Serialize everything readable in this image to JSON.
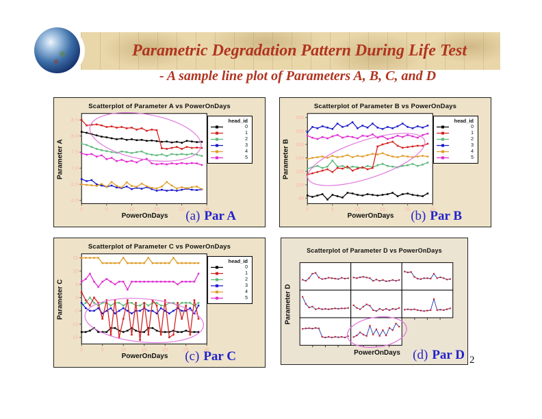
{
  "slide": {
    "title": "Parametric Degradation Pattern During Life Test",
    "subtitle": "- A sample line plot of Parameters A, B, C, and D",
    "page_number": "2"
  },
  "colors": {
    "title_red": "#b0341e",
    "caption_blue": "#2222cc",
    "banner_bg": "#e9d7aa",
    "chart_bg": "#eee3c8",
    "chart_bg_d": "#ece4d2",
    "tick_pink": "#ffb3a6",
    "ellipse_pink": "#e077dc",
    "trellis_line": "#2233aa",
    "trellis_marker": "#cc2020"
  },
  "legend": {
    "title": "head_id",
    "entries": [
      {
        "id": "0",
        "color": "#000000"
      },
      {
        "id": "1",
        "color": "#d42020"
      },
      {
        "id": "2",
        "color": "#5cb87a"
      },
      {
        "id": "3",
        "color": "#1818cc"
      },
      {
        "id": "4",
        "color": "#e09c28"
      },
      {
        "id": "5",
        "color": "#e228d2"
      }
    ]
  },
  "charts": {
    "a": {
      "title": "Scatterplot of Parameter A vs PowerOnDays",
      "ylabel": "Parameter A",
      "xlabel": "PowerOnDays",
      "caption_prefix": "(a)",
      "caption_label": "Par A"
    },
    "b": {
      "title": "Scatterplot of Parameter B vs PowerOnDays",
      "ylabel": "Parameter B",
      "xlabel": "PowerOnDays",
      "caption_prefix": "(b)",
      "caption_label": "Par B"
    },
    "c": {
      "title": "Scatterplot of Parameter C vs PowerOnDays",
      "ylabel": "Parameter C",
      "xlabel": "PowerOnDays",
      "caption_prefix": "(c)",
      "caption_label": "Par C"
    },
    "d": {
      "title": "Scatterplot of Parameter D vs PowerOnDays",
      "ylabel": "Parameter D",
      "xlabel": "PowerOnDays",
      "caption_prefix": "(d)",
      "caption_label": "Par D"
    }
  },
  "chart_data": [
    {
      "id": "a",
      "type": "line",
      "title": "Scatterplot of Parameter A vs PowerOnDays",
      "xlabel": "PowerOnDays",
      "ylabel": "Parameter A",
      "xlim": [
        0,
        25
      ],
      "ylim": [
        5.9,
        8.7
      ],
      "ydec": 1,
      "xticks": [
        0,
        5,
        10,
        15,
        20,
        25
      ],
      "yticks": [
        6.0,
        6.5,
        7.0,
        7.5,
        8.0,
        8.5
      ],
      "legend_position": "right",
      "series": [
        {
          "name": "0",
          "color": "#000000",
          "values": [
            8.13,
            8.1,
            8.06,
            8.02,
            7.98,
            7.96,
            7.93,
            7.9,
            7.92,
            7.88,
            7.9,
            7.87,
            7.88,
            7.85,
            7.86,
            7.84,
            7.82,
            7.83,
            7.8,
            7.82,
            7.79,
            7.85,
            7.83,
            7.81,
            7.82
          ]
        },
        {
          "name": "1",
          "color": "#d42020",
          "values": [
            8.5,
            8.33,
            8.35,
            8.36,
            8.33,
            8.28,
            8.3,
            8.26,
            8.28,
            8.24,
            8.26,
            8.2,
            8.24,
            8.16,
            8.2,
            8.18,
            7.62,
            7.6,
            7.63,
            7.66,
            7.6,
            7.66,
            7.63,
            7.64,
            7.63
          ]
        },
        {
          "name": "2",
          "color": "#5cb87a",
          "values": [
            7.76,
            7.72,
            7.66,
            7.6,
            7.56,
            7.53,
            7.5,
            7.48,
            7.52,
            7.5,
            7.47,
            7.5,
            7.52,
            7.45,
            7.42,
            7.4,
            7.43,
            7.38,
            7.44,
            7.42,
            7.44,
            7.42,
            7.45,
            7.42,
            7.38
          ]
        },
        {
          "name": "5",
          "color": "#e228d2",
          "values": [
            7.46,
            7.42,
            7.44,
            7.36,
            7.4,
            7.28,
            7.32,
            7.22,
            7.26,
            7.2,
            7.23,
            7.18,
            7.26,
            7.29,
            7.15,
            7.12,
            7.14,
            7.12,
            7.15,
            7.13,
            7.16,
            7.14,
            7.16,
            7.15,
            7.1
          ]
        },
        {
          "name": "3",
          "color": "#1818cc",
          "values": [
            6.66,
            6.6,
            6.63,
            6.5,
            6.46,
            6.42,
            6.46,
            6.4,
            6.38,
            6.43,
            6.35,
            6.39,
            6.36,
            6.41,
            6.35,
            6.3,
            6.33,
            6.3,
            6.32,
            6.3,
            6.33,
            6.36,
            6.33,
            6.32,
            6.34
          ]
        },
        {
          "name": "4",
          "color": "#e09c28",
          "values": [
            6.5,
            6.48,
            6.47,
            6.45,
            6.51,
            6.42,
            6.57,
            6.45,
            6.4,
            6.56,
            6.45,
            6.42,
            6.52,
            6.44,
            6.39,
            6.37,
            6.43,
            6.57,
            6.46,
            6.37,
            6.41,
            6.38,
            6.41,
            6.43,
            6.35
          ]
        }
      ],
      "ellipse": {
        "fx": 0.51,
        "fy": 0.26,
        "frx": 0.45,
        "fry": 0.25,
        "rot": 10
      }
    },
    {
      "id": "b",
      "type": "line",
      "title": "Scatterplot of Parameter B vs PowerOnDays",
      "xlabel": "PowerOnDays",
      "ylabel": "Parameter B",
      "xlim": [
        0,
        25
      ],
      "ylim": [
        72,
        206
      ],
      "ydec": 0,
      "xticks": [
        0,
        5,
        10,
        15,
        20,
        25
      ],
      "yticks": [
        80,
        100,
        120,
        140,
        160,
        180,
        200
      ],
      "legend_position": "right",
      "series": [
        {
          "name": "3",
          "color": "#1818cc",
          "values": [
            178,
            186,
            184,
            187,
            185,
            183,
            191,
            186,
            188,
            193,
            184,
            188,
            185,
            191,
            185,
            183,
            186,
            184,
            187,
            191,
            186,
            184,
            187,
            185,
            188
          ]
        },
        {
          "name": "5",
          "color": "#e228d2",
          "values": [
            173,
            170,
            168,
            171,
            169,
            172,
            174,
            170,
            172,
            171,
            169,
            173,
            172,
            175,
            170,
            172,
            168,
            170,
            173,
            171,
            174,
            172,
            170,
            174,
            176
          ]
        },
        {
          "name": "4",
          "color": "#e09c28",
          "values": [
            138,
            140,
            141,
            142,
            140,
            143,
            141,
            142,
            144,
            141,
            143,
            142,
            144,
            146,
            145,
            147,
            144,
            142,
            141,
            143,
            142,
            141,
            142,
            143,
            142
          ]
        },
        {
          "name": "2",
          "color": "#5cb87a",
          "values": [
            124,
            126,
            128,
            125,
            127,
            136,
            127,
            128,
            125,
            127,
            126,
            125,
            128,
            126,
            129,
            131,
            128,
            127,
            126,
            128,
            129,
            131,
            128,
            130,
            133
          ]
        },
        {
          "name": "0",
          "color": "#000000",
          "values": [
            84,
            82,
            84,
            86,
            78,
            85,
            83,
            81,
            88,
            87,
            85,
            84,
            86,
            85,
            84,
            85,
            86,
            88,
            83,
            86,
            87,
            85,
            84,
            83,
            87
          ]
        },
        {
          "name": "1",
          "color": "#d42020",
          "values": [
            115,
            117,
            119,
            121,
            123,
            119,
            125,
            124,
            127,
            121,
            124,
            126,
            123,
            125,
            157,
            160,
            162,
            164,
            158,
            155,
            156,
            157,
            158,
            158,
            161
          ]
        }
      ],
      "ellipse": {
        "fx": 0.47,
        "fy": 0.51,
        "frx": 0.49,
        "fry": 0.21,
        "rot": -18
      }
    },
    {
      "id": "c",
      "type": "line",
      "title": "Scatterplot of Parameter C vs PowerOnDays",
      "xlabel": "PowerOnDays",
      "ylabel": "Parameter C",
      "xlim": [
        0,
        30
      ],
      "ylim": [
        -17.5,
        16.5
      ],
      "ydec": 0,
      "xticks": [
        0,
        5,
        10,
        15,
        20,
        25,
        30
      ],
      "yticks": [
        -15,
        -10,
        -5,
        0,
        5,
        10,
        15
      ],
      "legend_position": "right",
      "series": [
        {
          "name": "4",
          "color": "#e09c28",
          "values": [
            15,
            15,
            15,
            15,
            15,
            13,
            13,
            13,
            13,
            13,
            15,
            13,
            13,
            13,
            13,
            13,
            15,
            13,
            13,
            13,
            13,
            13,
            15,
            13,
            13,
            13,
            13,
            13,
            13
          ]
        },
        {
          "name": "5",
          "color": "#e228d2",
          "values": [
            6,
            7,
            9,
            6,
            4,
            6,
            7,
            6,
            5,
            6,
            6,
            3,
            6,
            6,
            6,
            6,
            6,
            6,
            6,
            6,
            6,
            6,
            6,
            5,
            6,
            6,
            6,
            6,
            9
          ]
        },
        {
          "name": "2",
          "color": "#5cb87a",
          "values": [
            -3,
            -2,
            0,
            -2,
            -3,
            -2,
            -2,
            -3,
            -2,
            -2,
            -3,
            -2,
            -2,
            -3,
            -3,
            -2,
            -3,
            -2,
            -2,
            -3,
            -3,
            -2,
            -2,
            -3,
            -2,
            -2,
            -2,
            -3,
            -2
          ]
        },
        {
          "name": "3",
          "color": "#1818cc",
          "values": [
            -2,
            -4,
            -5,
            -5,
            -4,
            -6,
            -5,
            -4,
            -6,
            -5,
            -4,
            -5,
            -6,
            -5,
            -5,
            -4,
            -5,
            -5,
            -6,
            -4,
            -5,
            -6,
            -5,
            -4,
            -5,
            -5,
            -4,
            -6,
            -3
          ]
        },
        {
          "name": "0",
          "color": "#000000",
          "values": [
            -13,
            -13,
            -12.5,
            -11.5,
            -13,
            -13,
            -13,
            -11.5,
            -11.5,
            -12.5,
            -13,
            -12.5,
            -11.5,
            -12.5,
            -13,
            -13,
            -11.5,
            -11.5,
            -12.5,
            -13,
            -13,
            -13,
            -12.5,
            -13,
            -13,
            -12.5,
            -13,
            -13,
            -13
          ]
        },
        {
          "name": "1",
          "color": "#d42020",
          "values": [
            2,
            -1,
            -3,
            0,
            -2,
            -8,
            -1,
            -14,
            -1,
            -15,
            -8,
            -1,
            -14,
            -2,
            -16,
            -2,
            -14,
            -1,
            -3,
            -14,
            -1,
            -15,
            -14,
            -2,
            -8,
            -3,
            -14,
            -1,
            -8
          ]
        }
      ],
      "ellipse": {
        "fx": 0.5,
        "fy": 0.74,
        "frx": 0.475,
        "fry": 0.24,
        "rot": 5
      }
    },
    {
      "id": "d",
      "type": "trellis-line",
      "title": "Scatterplot of Parameter D vs PowerOnDays",
      "xlabel": "PowerOnDays",
      "ylabel": "Parameter D",
      "rows": 3,
      "cols": 3,
      "panels": [
        {
          "r": 0,
          "c": 0,
          "values": [
            0.35,
            0.3,
            0.42,
            0.62,
            0.66,
            0.45,
            0.38,
            0.4,
            0.44,
            0.42,
            0.4,
            0.38,
            0.44,
            0.4,
            0.42
          ]
        },
        {
          "r": 0,
          "c": 1,
          "values": [
            0.45,
            0.42,
            0.46,
            0.48,
            0.45,
            0.42,
            0.3,
            0.36,
            0.3,
            0.34,
            0.28,
            0.3,
            0.34,
            0.3,
            0.34
          ]
        },
        {
          "r": 0,
          "c": 2,
          "values": [
            0.72,
            0.68,
            0.7,
            0.48,
            0.4,
            0.38,
            0.42,
            0.42,
            0.4,
            0.62,
            0.42,
            0.46,
            0.42,
            0.36,
            0.38
          ]
        },
        {
          "r": 1,
          "c": 0,
          "values": [
            0.82,
            0.5,
            0.34,
            0.38,
            0.26,
            0.3,
            0.26,
            0.28,
            0.26,
            0.28,
            0.3,
            0.28,
            0.3,
            0.3,
            0.32
          ]
        },
        {
          "r": 1,
          "c": 1,
          "values": [
            0.44,
            0.32,
            0.26,
            0.38,
            0.48,
            0.42,
            0.22,
            0.18,
            0.28,
            0.22,
            0.28,
            0.22,
            0.28,
            0.26,
            0.32
          ]
        },
        {
          "r": 1,
          "c": 2,
          "values": [
            0.24,
            0.26,
            0.24,
            0.26,
            0.22,
            0.2,
            0.18,
            0.2,
            0.22,
            0.72,
            0.22,
            0.24,
            0.22,
            0.26,
            0.3
          ]
        },
        {
          "r": 2,
          "c": 0,
          "values": [
            0.62,
            0.64,
            0.65,
            0.63,
            0.66,
            0.64,
            0.26,
            0.23,
            0.26,
            0.23,
            0.26,
            0.24,
            0.26,
            0.23,
            0.29
          ]
        },
        {
          "r": 2,
          "c": 1,
          "values": [
            0.25,
            0.32,
            0.46,
            0.36,
            0.3,
            0.76,
            0.36,
            0.6,
            0.3,
            0.56,
            0.32,
            0.66,
            0.56,
            0.86,
            0.72
          ]
        }
      ],
      "ellipse": {
        "fx": 0.504,
        "fy": 0.84,
        "frx": 0.195,
        "fry": 0.18,
        "rot": -8
      }
    }
  ]
}
